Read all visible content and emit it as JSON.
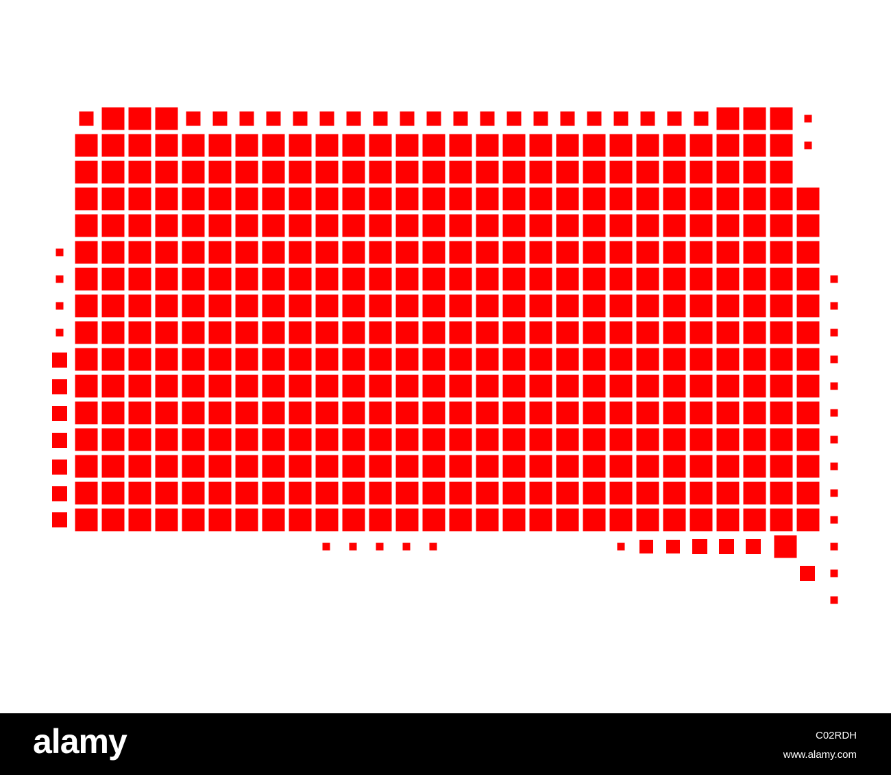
{
  "watermark": {
    "logo": "alamy",
    "image_id": "C02RDH",
    "url": "www.alamy.com"
  }
}
